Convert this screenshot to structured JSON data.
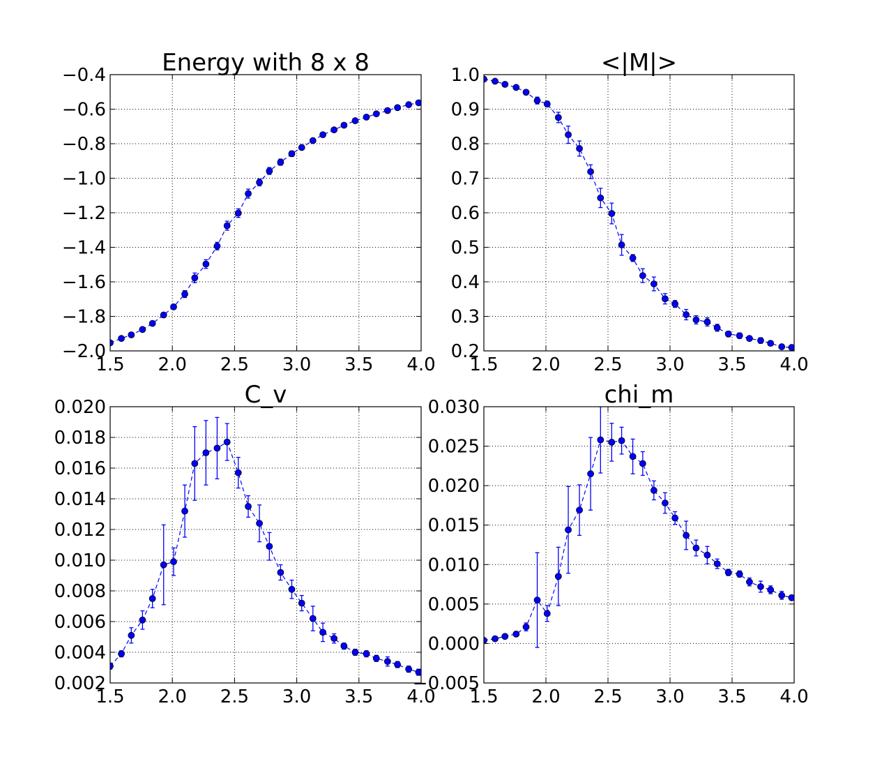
{
  "style": {
    "series_color": "#0000ff",
    "marker_fill": "#0000ff",
    "marker_edge": "#000000",
    "grid_color": "#000000",
    "background": "#ffffff"
  },
  "chart_data": [
    {
      "type": "line",
      "title": "Energy with 8 x 8",
      "xlabel": "",
      "ylabel": "",
      "grid": true,
      "line_style": "dashed",
      "marker": "circle",
      "error_bars": true,
      "xlim": [
        1.5,
        4.0
      ],
      "ylim": [
        -2.0,
        -0.4
      ],
      "xticks": [
        "1.5",
        "2.0",
        "2.5",
        "3.0",
        "3.5",
        "4.0"
      ],
      "yticks": [
        "−2.0",
        "−1.8",
        "−1.6",
        "−1.4",
        "−1.2",
        "−1.0",
        "−0.8",
        "−0.6",
        "−0.4"
      ],
      "series": [
        {
          "x": [
            1.5,
            1.59,
            1.67,
            1.76,
            1.84,
            1.93,
            2.01,
            2.1,
            2.18,
            2.27,
            2.36,
            2.44,
            2.53,
            2.61,
            2.7,
            2.78,
            2.87,
            2.96,
            3.04,
            3.13,
            3.21,
            3.3,
            3.38,
            3.47,
            3.56,
            3.64,
            3.73,
            3.81,
            3.9,
            3.98
          ],
          "y": [
            -1.953,
            -1.928,
            -1.907,
            -1.876,
            -1.841,
            -1.792,
            -1.745,
            -1.671,
            -1.577,
            -1.497,
            -1.393,
            -1.275,
            -1.202,
            -1.089,
            -1.024,
            -0.958,
            -0.907,
            -0.858,
            -0.822,
            -0.782,
            -0.748,
            -0.72,
            -0.693,
            -0.667,
            -0.646,
            -0.627,
            -0.608,
            -0.591,
            -0.574,
            -0.563
          ],
          "err": [
            0.008,
            0.008,
            0.008,
            0.009,
            0.01,
            0.012,
            0.013,
            0.02,
            0.028,
            0.025,
            0.022,
            0.026,
            0.025,
            0.026,
            0.02,
            0.02,
            0.018,
            0.016,
            0.012,
            0.012,
            0.012,
            0.01,
            0.008,
            0.008,
            0.008,
            0.008,
            0.006,
            0.006,
            0.006,
            0.006
          ]
        }
      ]
    },
    {
      "type": "line",
      "title": "<|M|>",
      "xlabel": "",
      "ylabel": "",
      "grid": true,
      "line_style": "dashed",
      "marker": "circle",
      "error_bars": true,
      "xlim": [
        1.5,
        4.0
      ],
      "ylim": [
        0.2,
        1.0
      ],
      "xticks": [
        "1.5",
        "2.0",
        "2.5",
        "3.0",
        "3.5",
        "4.0"
      ],
      "yticks": [
        "0.2",
        "0.3",
        "0.4",
        "0.5",
        "0.6",
        "0.7",
        "0.8",
        "0.9",
        "1.0"
      ],
      "series": [
        {
          "x": [
            1.5,
            1.59,
            1.67,
            1.76,
            1.84,
            1.93,
            2.01,
            2.1,
            2.18,
            2.27,
            2.36,
            2.44,
            2.53,
            2.61,
            2.7,
            2.78,
            2.87,
            2.96,
            3.04,
            3.13,
            3.21,
            3.3,
            3.38,
            3.47,
            3.56,
            3.64,
            3.73,
            3.81,
            3.9,
            3.98
          ],
          "y": [
            0.987,
            0.981,
            0.972,
            0.963,
            0.949,
            0.925,
            0.915,
            0.876,
            0.826,
            0.786,
            0.719,
            0.643,
            0.598,
            0.507,
            0.469,
            0.418,
            0.394,
            0.351,
            0.336,
            0.305,
            0.29,
            0.284,
            0.267,
            0.249,
            0.244,
            0.236,
            0.23,
            0.222,
            0.212,
            0.21
          ],
          "err": [
            0.004,
            0.004,
            0.005,
            0.006,
            0.007,
            0.01,
            0.008,
            0.015,
            0.025,
            0.022,
            0.02,
            0.028,
            0.03,
            0.03,
            0.01,
            0.02,
            0.02,
            0.015,
            0.01,
            0.015,
            0.012,
            0.012,
            0.01,
            0.008,
            0.008,
            0.007,
            0.008,
            0.007,
            0.006,
            0.006
          ]
        }
      ]
    },
    {
      "type": "line",
      "title": "C_v",
      "xlabel": "",
      "ylabel": "",
      "grid": true,
      "line_style": "dashed",
      "marker": "circle",
      "error_bars": true,
      "xlim": [
        1.5,
        4.0
      ],
      "ylim": [
        0.002,
        0.02
      ],
      "xticks": [
        "1.5",
        "2.0",
        "2.5",
        "3.0",
        "3.5",
        "4.0"
      ],
      "yticks": [
        "0.002",
        "0.004",
        "0.006",
        "0.008",
        "0.010",
        "0.012",
        "0.014",
        "0.016",
        "0.018",
        "0.020"
      ],
      "series": [
        {
          "x": [
            1.5,
            1.59,
            1.67,
            1.76,
            1.84,
            1.93,
            2.01,
            2.1,
            2.18,
            2.27,
            2.36,
            2.44,
            2.53,
            2.61,
            2.7,
            2.78,
            2.87,
            2.96,
            3.04,
            3.13,
            3.21,
            3.3,
            3.38,
            3.47,
            3.56,
            3.64,
            3.73,
            3.81,
            3.9,
            3.98
          ],
          "y": [
            0.0031,
            0.0039,
            0.0051,
            0.0061,
            0.0075,
            0.0097,
            0.0099,
            0.0132,
            0.0163,
            0.017,
            0.0173,
            0.0177,
            0.0157,
            0.0135,
            0.0124,
            0.0109,
            0.0092,
            0.0081,
            0.0072,
            0.0062,
            0.0053,
            0.0049,
            0.0044,
            0.004,
            0.0039,
            0.0036,
            0.0034,
            0.0032,
            0.0029,
            0.0027
          ],
          "err": [
            0.0002,
            0.0002,
            0.0005,
            0.0006,
            0.0006,
            0.0026,
            0.0009,
            0.0017,
            0.0024,
            0.0021,
            0.002,
            0.0012,
            0.001,
            0.0007,
            0.0012,
            0.0009,
            0.0005,
            0.0006,
            0.0005,
            0.0008,
            0.0006,
            0.0003,
            0.0002,
            0.0002,
            0.0002,
            0.0002,
            0.0003,
            0.0002,
            0.0002,
            0.0002
          ]
        }
      ]
    },
    {
      "type": "line",
      "title": "chi_m",
      "xlabel": "",
      "ylabel": "",
      "grid": true,
      "line_style": "dashed",
      "marker": "circle",
      "error_bars": true,
      "xlim": [
        1.5,
        4.0
      ],
      "ylim": [
        -0.005,
        0.03
      ],
      "xticks": [
        "1.5",
        "2.0",
        "2.5",
        "3.0",
        "3.5",
        "4.0"
      ],
      "yticks": [
        "−0.005",
        "0.000",
        "0.005",
        "0.010",
        "0.015",
        "0.020",
        "0.025",
        "0.030"
      ],
      "series": [
        {
          "x": [
            1.5,
            1.59,
            1.67,
            1.76,
            1.84,
            1.93,
            2.01,
            2.1,
            2.18,
            2.27,
            2.36,
            2.44,
            2.53,
            2.61,
            2.7,
            2.78,
            2.87,
            2.96,
            3.04,
            3.13,
            3.21,
            3.3,
            3.38,
            3.47,
            3.56,
            3.64,
            3.73,
            3.81,
            3.9,
            3.98
          ],
          "y": [
            0.0004,
            0.0006,
            0.0009,
            0.0012,
            0.0021,
            0.0055,
            0.0038,
            0.0085,
            0.0144,
            0.0169,
            0.0215,
            0.0258,
            0.0255,
            0.0257,
            0.0237,
            0.0228,
            0.0194,
            0.0178,
            0.0159,
            0.0137,
            0.0121,
            0.0112,
            0.0101,
            0.009,
            0.0088,
            0.0078,
            0.0072,
            0.0068,
            0.0061,
            0.0058
          ],
          "err": [
            0.0001,
            0.0001,
            0.0002,
            0.0002,
            0.0005,
            0.006,
            0.001,
            0.0037,
            0.0055,
            0.0032,
            0.0046,
            0.0042,
            0.0024,
            0.0017,
            0.0022,
            0.0015,
            0.0012,
            0.0013,
            0.0008,
            0.0018,
            0.001,
            0.0011,
            0.0006,
            0.0004,
            0.0004,
            0.0005,
            0.0007,
            0.0005,
            0.0005,
            0.0003
          ]
        }
      ]
    }
  ]
}
